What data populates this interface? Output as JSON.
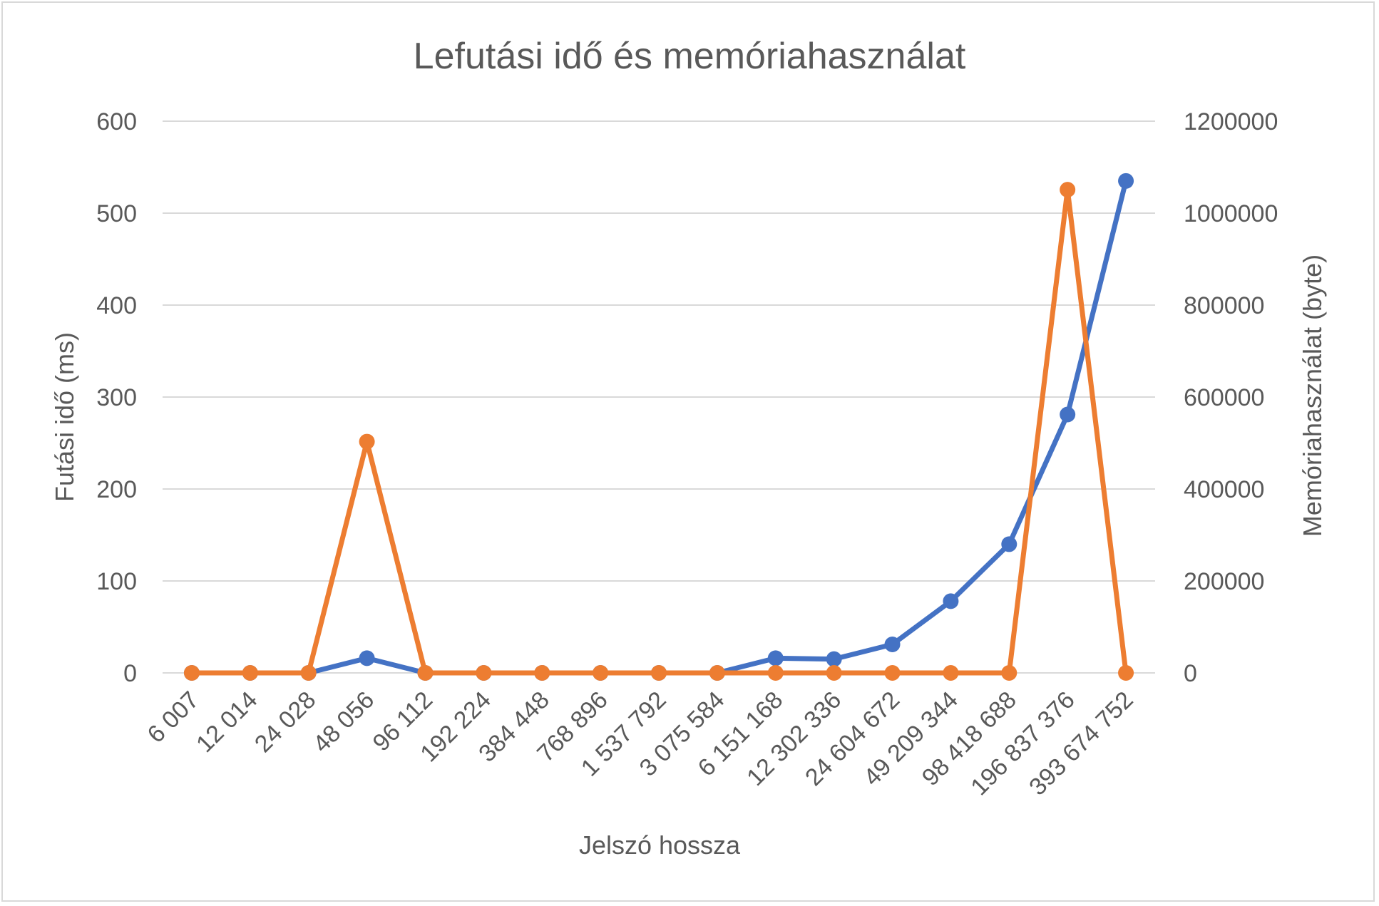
{
  "chart_data": {
    "type": "line",
    "title": "Lefutási idő és memóriahasználat",
    "xlabel": "Jelszó hossza",
    "ylabel": "Futási idő (ms)",
    "y2label": "Memóriahasználat (byte)",
    "ylim": [
      0,
      600
    ],
    "y2lim": [
      0,
      1200000
    ],
    "yticks": [
      "0",
      "100",
      "200",
      "300",
      "400",
      "500",
      "600"
    ],
    "y2ticks": [
      "0",
      "200000",
      "400000",
      "600000",
      "800000",
      "1000000",
      "1200000"
    ],
    "grid": true,
    "categories": [
      "6 007",
      "12 014",
      "24 028",
      "48 056",
      "96 112",
      "192 224",
      "384 448",
      "768 896",
      "1 537 792",
      "3 075 584",
      "6 151 168",
      "12 302 336",
      "24 604 672",
      "49 209 344",
      "98 418 688",
      "196 837 376",
      "393 674 752"
    ],
    "series": [
      {
        "axis": "left",
        "color": "#4472c4",
        "values": [
          0,
          0,
          0,
          16,
          0,
          0,
          0,
          0,
          0,
          0,
          16,
          15,
          31,
          78,
          140,
          281,
          535
        ]
      },
      {
        "axis": "right",
        "color": "#ed7d31",
        "values": [
          0,
          0,
          0,
          503000,
          0,
          0,
          0,
          0,
          0,
          0,
          0,
          0,
          0,
          0,
          0,
          1051000,
          0
        ]
      }
    ]
  }
}
